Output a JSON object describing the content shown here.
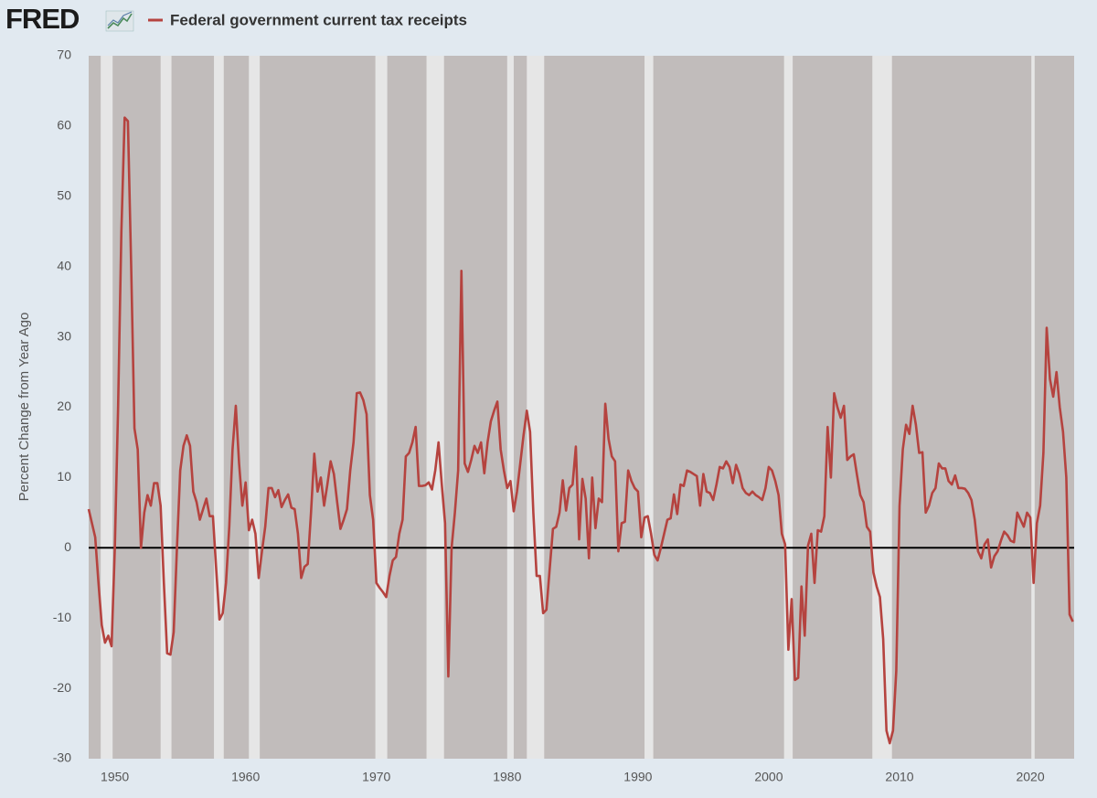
{
  "chart_data": {
    "type": "line",
    "logo": "FRED",
    "ylabel": "Percent Change from Year Ago",
    "xlim": [
      1948,
      2023.35
    ],
    "ylim": [
      -30,
      70
    ],
    "xticks": [
      1950,
      1960,
      1970,
      1980,
      1990,
      2000,
      2010,
      2020
    ],
    "yticks": [
      -30,
      -20,
      -10,
      0,
      10,
      20,
      30,
      40,
      50,
      60,
      70
    ],
    "reference_line": 0,
    "recessions": [
      [
        1948.92,
        1949.83
      ],
      [
        1953.5,
        1954.33
      ],
      [
        1957.58,
        1958.33
      ],
      [
        1960.25,
        1961.08
      ],
      [
        1969.92,
        1970.83
      ],
      [
        1973.83,
        1975.17
      ],
      [
        1980.0,
        1980.5
      ],
      [
        1981.5,
        1982.83
      ],
      [
        1990.5,
        1991.17
      ],
      [
        2001.17,
        2001.83
      ],
      [
        2007.92,
        2009.42
      ],
      [
        2020.08,
        2020.33
      ]
    ],
    "x": [
      1948,
      1948.25,
      1948.5,
      1948.75,
      1949,
      1949.25,
      1949.5,
      1949.75,
      1950,
      1950.25,
      1950.5,
      1950.75,
      1951,
      1951.25,
      1951.5,
      1951.75,
      1952,
      1952.25,
      1952.5,
      1952.75,
      1953,
      1953.25,
      1953.5,
      1953.75,
      1954,
      1954.25,
      1954.5,
      1954.75,
      1955,
      1955.25,
      1955.5,
      1955.75,
      1956,
      1956.25,
      1956.5,
      1956.75,
      1957,
      1957.25,
      1957.5,
      1957.75,
      1958,
      1958.25,
      1958.5,
      1958.75,
      1959,
      1959.25,
      1959.5,
      1959.75,
      1960,
      1960.25,
      1960.5,
      1960.75,
      1961,
      1961.25,
      1961.5,
      1961.75,
      1962,
      1962.25,
      1962.5,
      1962.75,
      1963,
      1963.25,
      1963.5,
      1963.75,
      1964,
      1964.25,
      1964.5,
      1964.75,
      1965,
      1965.25,
      1965.5,
      1965.75,
      1966,
      1966.25,
      1966.5,
      1966.75,
      1967,
      1967.25,
      1967.5,
      1967.75,
      1968,
      1968.25,
      1968.5,
      1968.75,
      1969,
      1969.25,
      1969.5,
      1969.75,
      1970,
      1970.25,
      1970.5,
      1970.75,
      1971,
      1971.25,
      1971.5,
      1971.75,
      1972,
      1972.25,
      1972.5,
      1972.75,
      1973,
      1973.25,
      1973.5,
      1973.75,
      1974,
      1974.25,
      1974.5,
      1974.75,
      1975,
      1975.25,
      1975.5,
      1975.75,
      1976,
      1976.25,
      1976.5,
      1976.75,
      1977,
      1977.25,
      1977.5,
      1977.75,
      1978,
      1978.25,
      1978.5,
      1978.75,
      1979,
      1979.25,
      1979.5,
      1979.75,
      1980,
      1980.25,
      1980.5,
      1980.75,
      1981,
      1981.25,
      1981.5,
      1981.75,
      1982,
      1982.25,
      1982.5,
      1982.75,
      1983,
      1983.25,
      1983.5,
      1983.75,
      1984,
      1984.25,
      1984.5,
      1984.75,
      1985,
      1985.25,
      1985.5,
      1985.75,
      1986,
      1986.25,
      1986.5,
      1986.75,
      1987,
      1987.25,
      1987.5,
      1987.75,
      1988,
      1988.25,
      1988.5,
      1988.75,
      1989,
      1989.25,
      1989.5,
      1989.75,
      1990,
      1990.25,
      1990.5,
      1990.75,
      1991,
      1991.25,
      1991.5,
      1991.75,
      1992,
      1992.25,
      1992.5,
      1992.75,
      1993,
      1993.25,
      1993.5,
      1993.75,
      1994,
      1994.25,
      1994.5,
      1994.75,
      1995,
      1995.25,
      1995.5,
      1995.75,
      1996,
      1996.25,
      1996.5,
      1996.75,
      1997,
      1997.25,
      1997.5,
      1997.75,
      1998,
      1998.25,
      1998.5,
      1998.75,
      1999,
      1999.25,
      1999.5,
      1999.75,
      2000,
      2000.25,
      2000.5,
      2000.75,
      2001,
      2001.25,
      2001.5,
      2001.75,
      2002,
      2002.25,
      2002.5,
      2002.75,
      2003,
      2003.25,
      2003.5,
      2003.75,
      2004,
      2004.25,
      2004.5,
      2004.75,
      2005,
      2005.25,
      2005.5,
      2005.75,
      2006,
      2006.25,
      2006.5,
      2006.75,
      2007,
      2007.25,
      2007.5,
      2007.75,
      2008,
      2008.25,
      2008.5,
      2008.75,
      2009,
      2009.25,
      2009.5,
      2009.75,
      2010,
      2010.25,
      2010.5,
      2010.75,
      2011,
      2011.25,
      2011.5,
      2011.75,
      2012,
      2012.25,
      2012.5,
      2012.75,
      2013,
      2013.25,
      2013.5,
      2013.75,
      2014,
      2014.25,
      2014.5,
      2014.75,
      2015,
      2015.25,
      2015.5,
      2015.75,
      2016,
      2016.25,
      2016.5,
      2016.75,
      2017,
      2017.25,
      2017.5,
      2017.75,
      2018,
      2018.25,
      2018.5,
      2018.75,
      2019,
      2019.25,
      2019.5,
      2019.75,
      2020,
      2020.25,
      2020.5,
      2020.75,
      2021,
      2021.25,
      2021.5,
      2021.75,
      2022,
      2022.25,
      2022.5,
      2022.75,
      2023,
      2023.25
    ],
    "series": [
      {
        "name": "Federal government current tax receipts",
        "color": "#b5433f",
        "values": [
          5.5,
          3.5,
          1.5,
          -5,
          -11,
          -13.5,
          -12.5,
          -14,
          0,
          20,
          45,
          61.2,
          60.7,
          40,
          17,
          14,
          0,
          5,
          7.5,
          6,
          9.2,
          9.2,
          6,
          -5,
          -15,
          -15.2,
          -12,
          0,
          11,
          14.5,
          16,
          14.5,
          8,
          6.5,
          4,
          5.5,
          7,
          4.5,
          4.5,
          -3,
          -10.2,
          -9.3,
          -5,
          3,
          14,
          20.2,
          12,
          6,
          9.3,
          2.5,
          4,
          2,
          -4.3,
          -0.5,
          3,
          8.5,
          8.5,
          7.2,
          8.2,
          5.8,
          6.8,
          7.6,
          5.7,
          5.5,
          2,
          -4.3,
          -2.7,
          -2.3,
          5,
          13.4,
          8,
          10,
          6,
          9,
          12.3,
          10.5,
          6.5,
          2.7,
          4,
          5.5,
          11,
          15,
          22,
          22.1,
          21,
          19,
          7.5,
          4,
          -5,
          -5.7,
          -6.3,
          -7,
          -4,
          -1.8,
          -1.3,
          2,
          4,
          13,
          13.5,
          15,
          17.2,
          8.8,
          8.8,
          8.9,
          9.3,
          8.3,
          11,
          15,
          9,
          3.5,
          -18.3,
          0,
          5,
          11,
          39.4,
          12,
          10.8,
          12.5,
          14.5,
          13.5,
          15,
          10.6,
          15,
          18,
          19.5,
          20.8,
          14,
          11,
          8.5,
          9.5,
          5.2,
          8,
          12,
          16,
          19.5,
          16.5,
          5,
          -4,
          -4,
          -9.3,
          -8.8,
          -3,
          2.7,
          3,
          5,
          9.6,
          5.3,
          8.5,
          9,
          14.4,
          1.2,
          9.8,
          7,
          -1.5,
          10,
          2.8,
          7,
          6.5,
          20.5,
          15.5,
          13,
          12.3,
          -0.5,
          3.5,
          3.7,
          11,
          9.5,
          8.5,
          8,
          1.5,
          4.3,
          4.5,
          2,
          -1,
          -1.8,
          0,
          2,
          4,
          4.2,
          7.6,
          4.8,
          9,
          8.8,
          11,
          10.8,
          10.5,
          10.2,
          6,
          10.5,
          8,
          7.8,
          6.8,
          9,
          11.5,
          11.3,
          12.3,
          11.5,
          9.2,
          11.8,
          10.5,
          8.5,
          7.8,
          7.5,
          8,
          7.5,
          7.2,
          6.8,
          8.5,
          11.5,
          11,
          9.5,
          7.5,
          2,
          0.5,
          -14.5,
          -7.3,
          -18.8,
          -18.5,
          -5.5,
          -12.5,
          0.3,
          2,
          -5,
          2.5,
          2.3,
          4.5,
          17.2,
          10,
          22,
          20,
          18.5,
          20.2,
          12.5,
          13,
          13.3,
          10.3,
          7.5,
          6.5,
          3,
          2.3,
          -3.5,
          -5.5,
          -7,
          -13,
          -26,
          -27.8,
          -26,
          -17.5,
          6,
          14,
          17.5,
          16.2,
          20.2,
          17.5,
          13.5,
          13.6,
          5,
          6,
          7.8,
          8.5,
          12,
          11.3,
          11.3,
          9.5,
          9,
          10.3,
          8.5,
          8.5,
          8.4,
          7.8,
          6.8,
          4,
          -0.5,
          -1.5,
          0.5,
          1.2,
          -2.8,
          -1.2,
          -0.5,
          1,
          2.3,
          1.8,
          1,
          0.8,
          5,
          4,
          3,
          5,
          4.3,
          -5,
          3.5,
          6,
          13.5,
          31.3,
          24,
          21.5,
          25,
          20,
          16.5,
          10,
          -9.5,
          -10.5
        ]
      }
    ]
  }
}
